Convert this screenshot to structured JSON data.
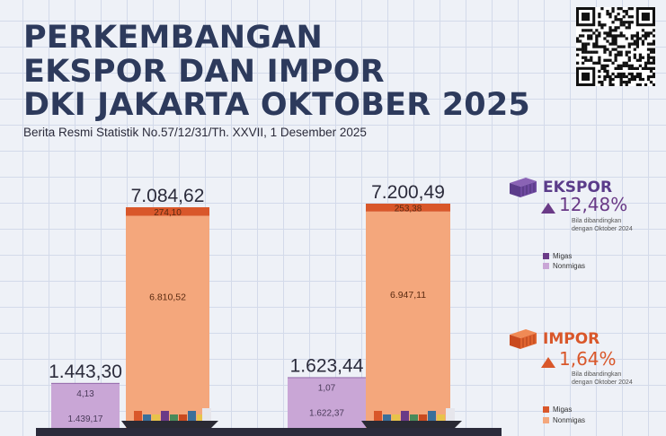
{
  "title_lines": [
    "PERKEMBANGAN",
    "EKSPOR DAN IMPOR",
    "DKI JAKARTA OKTOBER 2025"
  ],
  "subtitle": "Berita Resmi Statistik No.57/12/31/Th. XXVII, 1 Desember 2025",
  "colors": {
    "title": "#2d3a5c",
    "export_migas": "#6a3a87",
    "export_nonmigas": "#c9a6d6",
    "import_migas": "#d9572a",
    "import_nonmigas": "#f4a77c"
  },
  "ekspor": {
    "label": "EKSPOR",
    "change": "12,48%",
    "direction": "up",
    "note": "Bila dibandingkan dengan Oktober 2024",
    "legend": [
      "Migas",
      "Nonmigas"
    ]
  },
  "impor": {
    "label": "IMPOR",
    "change": "1,64%",
    "direction": "up",
    "note": "Bila dibandingkan dengan Oktober 2024",
    "legend": [
      "Migas",
      "Nonmigas"
    ]
  },
  "chart_data": {
    "type": "bar",
    "stacked": true,
    "unit": "juta US$",
    "groups": [
      {
        "bars": [
          {
            "flow": "Ekspor",
            "total": 1443.3,
            "total_label": "1.443,30",
            "migas": 4.13,
            "migas_label": "4,13",
            "nonmigas": 1439.17,
            "nonmigas_label": "1.439,17"
          },
          {
            "flow": "Impor",
            "total": 7084.62,
            "total_label": "7.084,62",
            "migas": 274.1,
            "migas_label": "274,10",
            "nonmigas": 6810.52,
            "nonmigas_label": "6.810,52"
          }
        ]
      },
      {
        "bars": [
          {
            "flow": "Ekspor",
            "total": 1623.44,
            "total_label": "1.623,44",
            "migas": 1.07,
            "migas_label": "1,07",
            "nonmigas": 1622.37,
            "nonmigas_label": "1.622,37"
          },
          {
            "flow": "Impor",
            "total": 7200.49,
            "total_label": "7.200,49",
            "migas": 253.38,
            "migas_label": "253,38",
            "nonmigas": 6947.11,
            "nonmigas_label": "6.947,11"
          }
        ]
      }
    ],
    "ylim": [
      0,
      7200.49
    ],
    "grid": false,
    "legend_position": "right"
  }
}
